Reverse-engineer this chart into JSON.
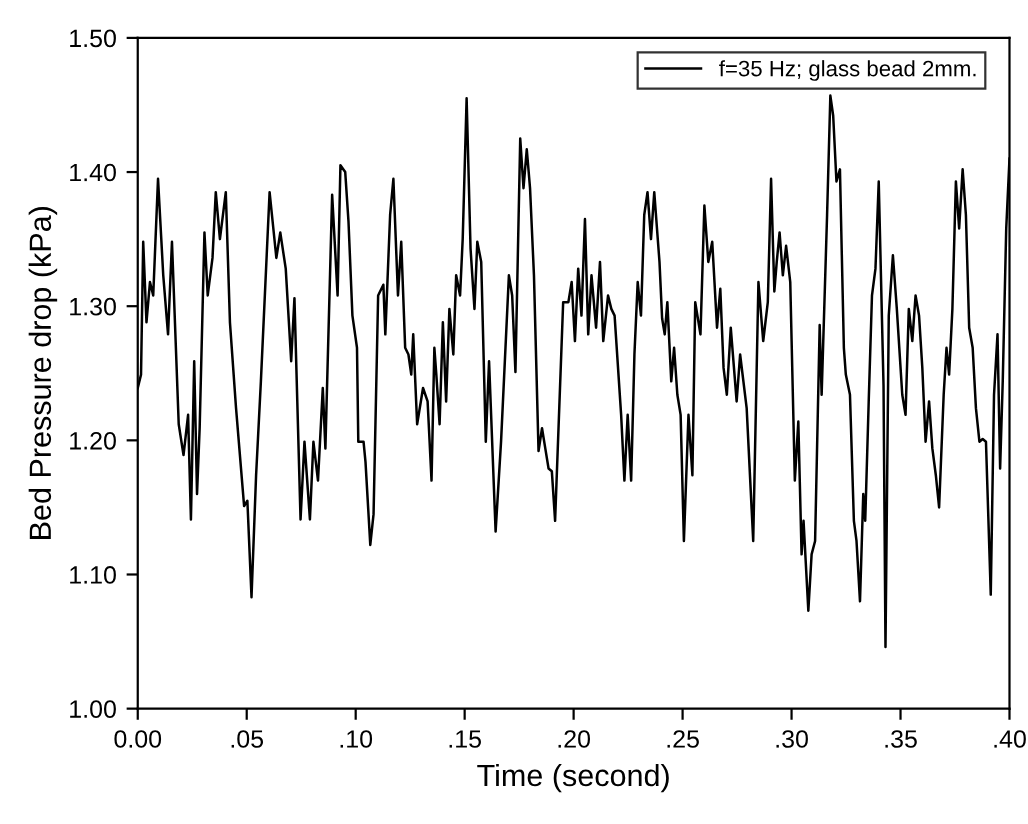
{
  "chart_data": {
    "type": "line",
    "xlabel": "Time (second)",
    "ylabel": "Bed Pressure drop (kPa)",
    "xlim": [
      0,
      0.4
    ],
    "ylim": [
      1.0,
      1.5
    ],
    "xticks": [
      {
        "value": 0,
        "label": "0.00"
      },
      {
        "value": 0.05,
        "label": ".05"
      },
      {
        "value": 0.1,
        "label": ".10"
      },
      {
        "value": 0.15,
        "label": ".15"
      },
      {
        "value": 0.2,
        "label": ".20"
      },
      {
        "value": 0.25,
        "label": ".25"
      },
      {
        "value": 0.3,
        "label": ".30"
      },
      {
        "value": 0.35,
        "label": ".35"
      },
      {
        "value": 0.4,
        "label": ".40"
      }
    ],
    "yticks": [
      {
        "value": 1.0,
        "label": "1.00"
      },
      {
        "value": 1.1,
        "label": "1.10"
      },
      {
        "value": 1.2,
        "label": "1.20"
      },
      {
        "value": 1.3,
        "label": "1.30"
      },
      {
        "value": 1.4,
        "label": "1.40"
      },
      {
        "value": 1.5,
        "label": "1.50"
      }
    ],
    "grid": false,
    "legend": "top right",
    "marker": "none",
    "line_style": "solid",
    "series": [
      {
        "name": "f=35 Hz; glass bead 2mm.",
        "color": "#000000",
        "x": [
          0.0,
          0.0015,
          0.0025,
          0.004,
          0.0056,
          0.0071,
          0.0093,
          0.0117,
          0.0139,
          0.0157,
          0.0188,
          0.021,
          0.0231,
          0.0244,
          0.0259,
          0.0272,
          0.0284,
          0.0306,
          0.0321,
          0.0343,
          0.0358,
          0.0377,
          0.0404,
          0.0423,
          0.0451,
          0.0488,
          0.0503,
          0.0522,
          0.0543,
          0.0565,
          0.0605,
          0.0636,
          0.0654,
          0.0679,
          0.0704,
          0.0719,
          0.0747,
          0.0765,
          0.079,
          0.0806,
          0.0827,
          0.0849,
          0.0861,
          0.0892,
          0.0917,
          0.093,
          0.0952,
          0.0967,
          0.0985,
          0.1006,
          0.1012,
          0.1036,
          0.1045,
          0.1067,
          0.1082,
          0.1103,
          0.1127,
          0.1136,
          0.1158,
          0.1173,
          0.1194,
          0.1209,
          0.1227,
          0.1242,
          0.1255,
          0.1264,
          0.1282,
          0.1309,
          0.133,
          0.1348,
          0.1361,
          0.137,
          0.1385,
          0.14,
          0.1415,
          0.143,
          0.1448,
          0.1461,
          0.1479,
          0.1491,
          0.1509,
          0.1527,
          0.1545,
          0.1558,
          0.1576,
          0.1597,
          0.1612,
          0.1642,
          0.1667,
          0.1703,
          0.1718,
          0.1733,
          0.1755,
          0.177,
          0.1785,
          0.18,
          0.1818,
          0.1839,
          0.1855,
          0.187,
          0.1885,
          0.19,
          0.1915,
          0.1952,
          0.1976,
          0.1991,
          0.2006,
          0.2021,
          0.2036,
          0.2052,
          0.2067,
          0.2082,
          0.2103,
          0.2121,
          0.2136,
          0.2158,
          0.2173,
          0.2188,
          0.2218,
          0.2233,
          0.2248,
          0.2264,
          0.2279,
          0.2294,
          0.2309,
          0.2324,
          0.2339,
          0.2355,
          0.237,
          0.2394,
          0.2406,
          0.2418,
          0.243,
          0.2448,
          0.2461,
          0.2476,
          0.2491,
          0.2506,
          0.2527,
          0.2545,
          0.2558,
          0.2582,
          0.26,
          0.2618,
          0.2636,
          0.2658,
          0.2673,
          0.2688,
          0.2703,
          0.2721,
          0.2748,
          0.2764,
          0.2794,
          0.2824,
          0.2848,
          0.287,
          0.2891,
          0.2906,
          0.2921,
          0.2932,
          0.2945,
          0.296,
          0.2975,
          0.2994,
          0.3015,
          0.3031,
          0.3046,
          0.3055,
          0.3077,
          0.3092,
          0.3108,
          0.3129,
          0.3138,
          0.3163,
          0.3178,
          0.3191,
          0.3206,
          0.3222,
          0.324,
          0.3249,
          0.3268,
          0.3286,
          0.3298,
          0.3314,
          0.3329,
          0.3338,
          0.3354,
          0.3369,
          0.3385,
          0.34,
          0.3422,
          0.3431,
          0.3446,
          0.3465,
          0.3483,
          0.3508,
          0.3523,
          0.3538,
          0.3554,
          0.3569,
          0.3585,
          0.36,
          0.3615,
          0.3631,
          0.3646,
          0.3662,
          0.3677,
          0.3698,
          0.3711,
          0.3723,
          0.3738,
          0.3754,
          0.3769,
          0.3785,
          0.38,
          0.3815,
          0.3831,
          0.3846,
          0.3862,
          0.3877,
          0.3892,
          0.3914,
          0.3929,
          0.3945,
          0.3957,
          0.3969,
          0.3985,
          0.4
        ],
        "values": [
          1.239,
          1.249,
          1.348,
          1.288,
          1.318,
          1.308,
          1.395,
          1.323,
          1.279,
          1.348,
          1.212,
          1.189,
          1.219,
          1.141,
          1.259,
          1.16,
          1.209,
          1.355,
          1.308,
          1.336,
          1.385,
          1.35,
          1.385,
          1.288,
          1.224,
          1.151,
          1.155,
          1.083,
          1.174,
          1.244,
          1.385,
          1.336,
          1.355,
          1.328,
          1.259,
          1.306,
          1.141,
          1.199,
          1.141,
          1.199,
          1.17,
          1.239,
          1.194,
          1.383,
          1.308,
          1.405,
          1.4,
          1.363,
          1.293,
          1.269,
          1.199,
          1.199,
          1.184,
          1.122,
          1.145,
          1.308,
          1.316,
          1.279,
          1.368,
          1.395,
          1.308,
          1.348,
          1.269,
          1.264,
          1.249,
          1.279,
          1.212,
          1.239,
          1.229,
          1.17,
          1.269,
          1.249,
          1.212,
          1.288,
          1.229,
          1.298,
          1.264,
          1.323,
          1.308,
          1.35,
          1.455,
          1.343,
          1.298,
          1.348,
          1.333,
          1.199,
          1.259,
          1.132,
          1.199,
          1.323,
          1.308,
          1.251,
          1.425,
          1.388,
          1.417,
          1.388,
          1.323,
          1.192,
          1.209,
          1.194,
          1.179,
          1.177,
          1.14,
          1.303,
          1.303,
          1.318,
          1.274,
          1.328,
          1.293,
          1.365,
          1.279,
          1.323,
          1.284,
          1.333,
          1.274,
          1.308,
          1.298,
          1.293,
          1.219,
          1.17,
          1.219,
          1.17,
          1.264,
          1.318,
          1.293,
          1.368,
          1.385,
          1.35,
          1.385,
          1.333,
          1.291,
          1.279,
          1.303,
          1.244,
          1.269,
          1.234,
          1.219,
          1.125,
          1.219,
          1.174,
          1.303,
          1.279,
          1.375,
          1.333,
          1.348,
          1.284,
          1.313,
          1.254,
          1.234,
          1.284,
          1.229,
          1.264,
          1.224,
          1.125,
          1.318,
          1.274,
          1.303,
          1.395,
          1.311,
          1.333,
          1.355,
          1.323,
          1.345,
          1.318,
          1.17,
          1.214,
          1.115,
          1.14,
          1.073,
          1.115,
          1.125,
          1.286,
          1.234,
          1.368,
          1.457,
          1.442,
          1.393,
          1.402,
          1.269,
          1.249,
          1.234,
          1.14,
          1.125,
          1.08,
          1.16,
          1.14,
          1.229,
          1.308,
          1.328,
          1.393,
          1.241,
          1.046,
          1.293,
          1.338,
          1.298,
          1.234,
          1.219,
          1.298,
          1.274,
          1.308,
          1.293,
          1.254,
          1.199,
          1.229,
          1.194,
          1.174,
          1.15,
          1.234,
          1.269,
          1.249,
          1.298,
          1.393,
          1.358,
          1.402,
          1.368,
          1.284,
          1.269,
          1.224,
          1.199,
          1.201,
          1.199,
          1.085,
          1.234,
          1.279,
          1.179,
          1.244,
          1.358,
          1.41
        ]
      }
    ]
  }
}
